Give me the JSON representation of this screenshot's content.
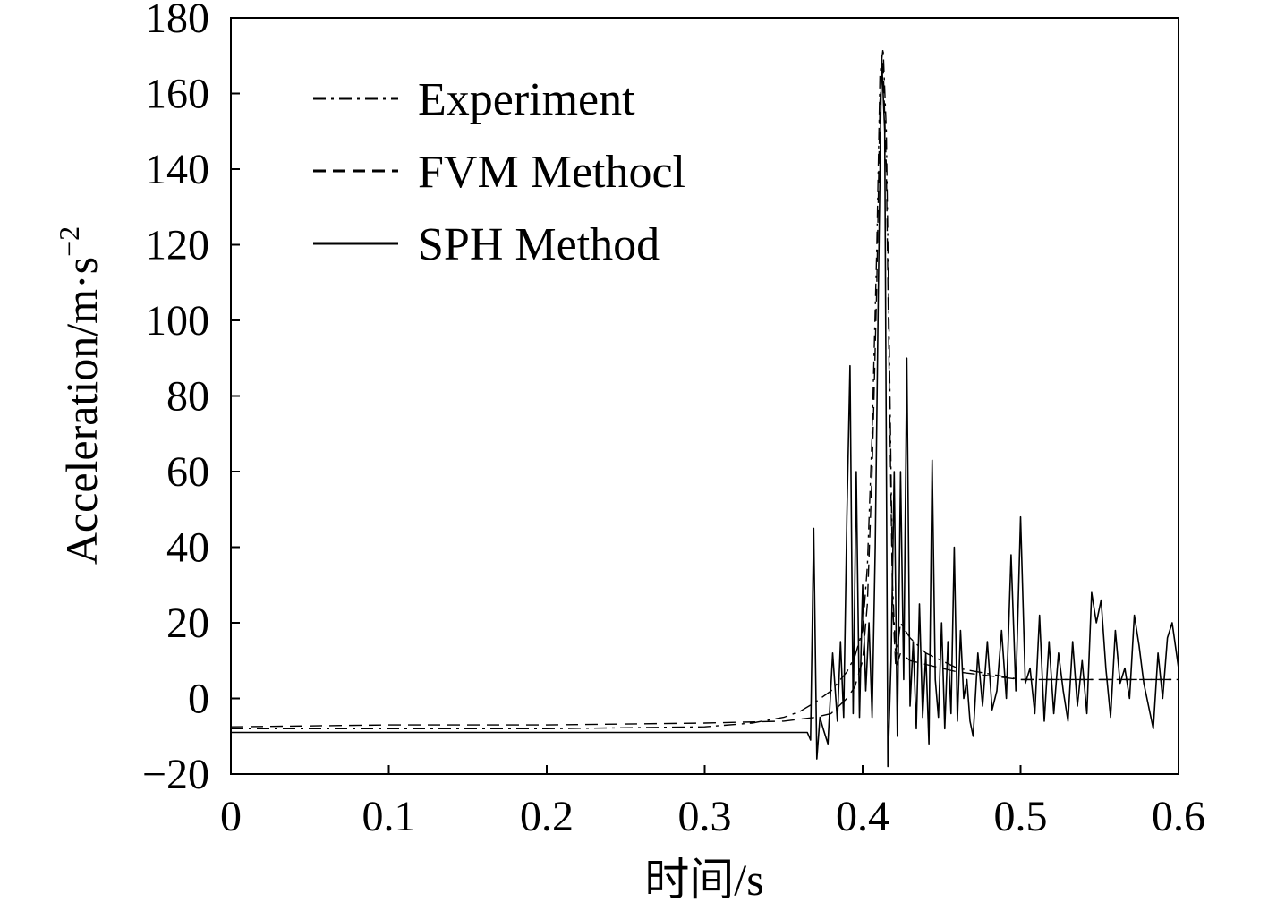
{
  "chart_data": {
    "type": "line",
    "title": "",
    "xlabel": "时间/s",
    "ylabel_main": "Acceleration/m·s",
    "ylabel_sup": "−2",
    "xlim": [
      0,
      0.6
    ],
    "ylim": [
      -20,
      180
    ],
    "x_ticks": [
      {
        "v": 0,
        "label": "0"
      },
      {
        "v": 0.1,
        "label": "0.1"
      },
      {
        "v": 0.2,
        "label": "0.2"
      },
      {
        "v": 0.3,
        "label": "0.3"
      },
      {
        "v": 0.4,
        "label": "0.4"
      },
      {
        "v": 0.5,
        "label": "0.5"
      },
      {
        "v": 0.6,
        "label": "0.6"
      }
    ],
    "y_ticks": [
      {
        "v": -20,
        "label": "−20"
      },
      {
        "v": 0,
        "label": "0"
      },
      {
        "v": 20,
        "label": "20"
      },
      {
        "v": 40,
        "label": "40"
      },
      {
        "v": 60,
        "label": "60"
      },
      {
        "v": 80,
        "label": "80"
      },
      {
        "v": 100,
        "label": "100"
      },
      {
        "v": 120,
        "label": "120"
      },
      {
        "v": 140,
        "label": "140"
      },
      {
        "v": 160,
        "label": "160"
      },
      {
        "v": 180,
        "label": "180"
      }
    ],
    "grid": false,
    "legend_position": "top-left",
    "series": [
      {
        "name": "Experiment",
        "dash": "dashdot",
        "x": [
          0,
          0.1,
          0.2,
          0.3,
          0.33,
          0.35,
          0.36,
          0.37,
          0.38,
          0.39,
          0.395,
          0.4,
          0.403,
          0.406,
          0.409,
          0.411,
          0.413,
          0.415,
          0.417,
          0.419,
          0.421,
          0.424,
          0.43,
          0.44,
          0.46,
          0.5,
          0.55,
          0.6
        ],
        "y": [
          -8,
          -8,
          -8,
          -7.5,
          -6.5,
          -5,
          -3.5,
          -1,
          2,
          7,
          11,
          18,
          35,
          70,
          120,
          165,
          172,
          150,
          90,
          30,
          10,
          20,
          16,
          12,
          8,
          5,
          5,
          5
        ]
      },
      {
        "name": "FVM Methocl",
        "dash": "dashed",
        "x": [
          0,
          0.1,
          0.2,
          0.3,
          0.35,
          0.37,
          0.38,
          0.39,
          0.395,
          0.4,
          0.403,
          0.406,
          0.409,
          0.411,
          0.413,
          0.415,
          0.417,
          0.419,
          0.421,
          0.424,
          0.43,
          0.44,
          0.46,
          0.5,
          0.55,
          0.6
        ],
        "y": [
          -7.5,
          -7,
          -7,
          -6.5,
          -6,
          -5,
          -4,
          0,
          3,
          10,
          25,
          60,
          110,
          158,
          168,
          140,
          80,
          25,
          8,
          12,
          10,
          9,
          7,
          5,
          5,
          5
        ]
      },
      {
        "name": "SPH Method",
        "dash": "solid",
        "x": [
          0,
          0.1,
          0.2,
          0.3,
          0.365,
          0.367,
          0.369,
          0.371,
          0.373,
          0.375,
          0.378,
          0.381,
          0.384,
          0.386,
          0.388,
          0.39,
          0.392,
          0.394,
          0.396,
          0.398,
          0.4,
          0.402,
          0.404,
          0.406,
          0.408,
          0.41,
          0.412,
          0.414,
          0.416,
          0.418,
          0.42,
          0.422,
          0.424,
          0.426,
          0.428,
          0.43,
          0.432,
          0.434,
          0.436,
          0.438,
          0.44,
          0.442,
          0.444,
          0.446,
          0.448,
          0.45,
          0.452,
          0.454,
          0.456,
          0.458,
          0.46,
          0.462,
          0.464,
          0.466,
          0.468,
          0.47,
          0.473,
          0.476,
          0.479,
          0.482,
          0.485,
          0.488,
          0.491,
          0.494,
          0.497,
          0.5,
          0.503,
          0.506,
          0.509,
          0.512,
          0.515,
          0.518,
          0.521,
          0.524,
          0.527,
          0.53,
          0.533,
          0.536,
          0.539,
          0.542,
          0.545,
          0.548,
          0.551,
          0.554,
          0.557,
          0.56,
          0.563,
          0.566,
          0.569,
          0.572,
          0.575,
          0.578,
          0.581,
          0.584,
          0.587,
          0.59,
          0.593,
          0.596,
          0.6
        ],
        "y": [
          -9,
          -9,
          -9,
          -9,
          -9,
          -11,
          45,
          -16,
          -5,
          -8,
          -12,
          12,
          -6,
          15,
          -5,
          48,
          88,
          -4,
          60,
          -5,
          30,
          2,
          20,
          -5,
          40,
          108,
          170,
          150,
          -18,
          10,
          60,
          -10,
          60,
          5,
          90,
          -2,
          15,
          -8,
          25,
          -5,
          12,
          -12,
          63,
          5,
          -5,
          20,
          -8,
          15,
          -4,
          40,
          -6,
          18,
          0,
          5,
          -6,
          -10,
          12,
          -2,
          15,
          -3,
          2,
          18,
          0,
          38,
          2,
          48,
          4,
          8,
          -4,
          22,
          -6,
          15,
          -4,
          12,
          2,
          -6,
          15,
          -2,
          10,
          -4,
          28,
          20,
          26,
          8,
          -5,
          18,
          4,
          8,
          0,
          22,
          14,
          4,
          -2,
          -8,
          12,
          0,
          16,
          20,
          8
        ]
      }
    ]
  }
}
